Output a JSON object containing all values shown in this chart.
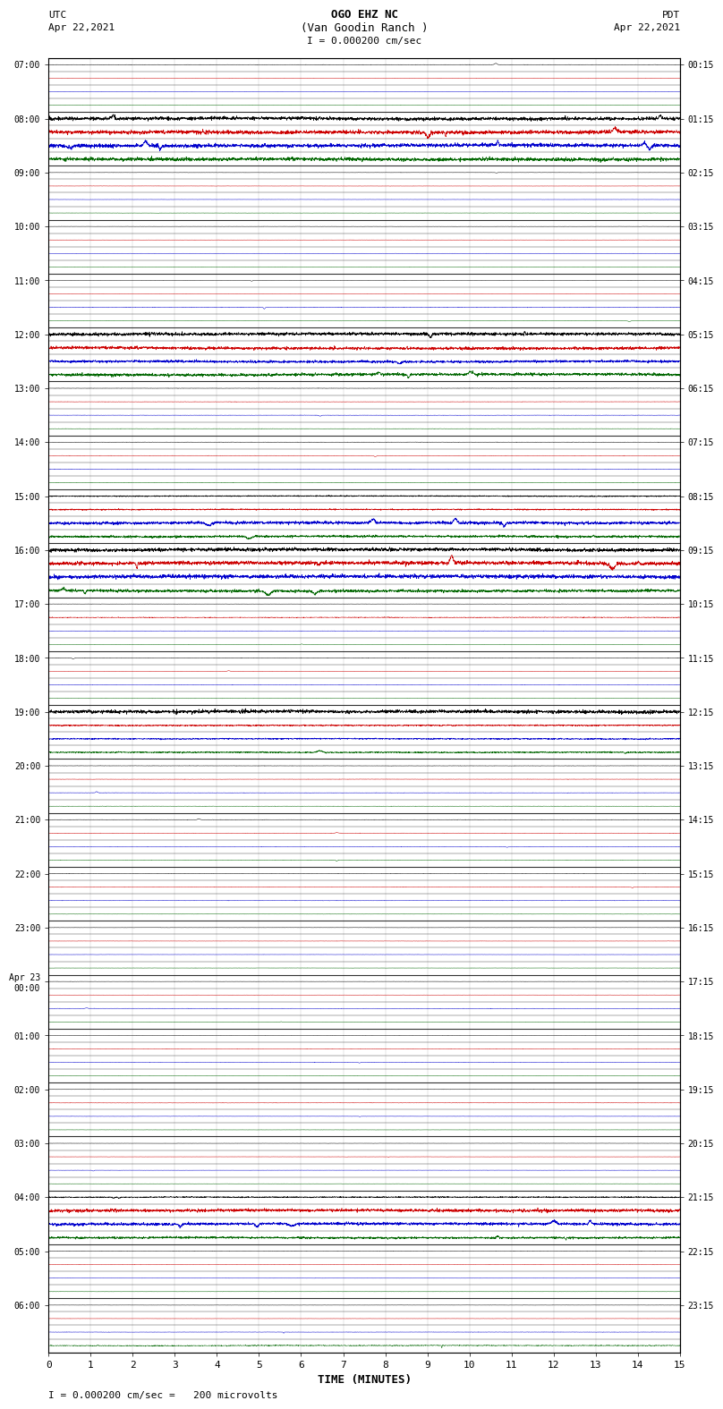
{
  "title_line1": "OGO EHZ NC",
  "title_line2": "(Van Goodin Ranch )",
  "scale_text": "I = 0.000200 cm/sec",
  "footer_text": "I = 0.000200 cm/sec =   200 microvolts",
  "xlabel": "TIME (MINUTES)",
  "xlim": [
    0,
    15
  ],
  "xticks": [
    0,
    1,
    2,
    3,
    4,
    5,
    6,
    7,
    8,
    9,
    10,
    11,
    12,
    13,
    14,
    15
  ],
  "background_color": "#ffffff",
  "figure_width": 8.5,
  "figure_height": 16.13,
  "colors": [
    "#000000",
    "#cc0000",
    "#0000cc",
    "#006600"
  ],
  "utc_labels": [
    "07:00",
    "",
    "",
    "",
    "08:00",
    "",
    "",
    "",
    "09:00",
    "",
    "",
    "",
    "10:00",
    "",
    "",
    "",
    "11:00",
    "",
    "",
    "",
    "12:00",
    "",
    "",
    "",
    "13:00",
    "",
    "",
    "",
    "14:00",
    "",
    "",
    "",
    "15:00",
    "",
    "",
    "",
    "16:00",
    "",
    "",
    "",
    "17:00",
    "",
    "",
    "",
    "18:00",
    "",
    "",
    "",
    "19:00",
    "",
    "",
    "",
    "20:00",
    "",
    "",
    "",
    "21:00",
    "",
    "",
    "",
    "22:00",
    "",
    "",
    "",
    "23:00",
    "",
    "",
    "",
    "Apr 23\n00:00",
    "",
    "",
    "",
    "01:00",
    "",
    "",
    "",
    "02:00",
    "",
    "",
    "",
    "03:00",
    "",
    "",
    "",
    "04:00",
    "",
    "",
    "",
    "05:00",
    "",
    "",
    "",
    "06:00",
    "",
    "",
    ""
  ],
  "pdt_labels": [
    "00:15",
    "",
    "",
    "",
    "01:15",
    "",
    "",
    "",
    "02:15",
    "",
    "",
    "",
    "03:15",
    "",
    "",
    "",
    "04:15",
    "",
    "",
    "",
    "05:15",
    "",
    "",
    "",
    "06:15",
    "",
    "",
    "",
    "07:15",
    "",
    "",
    "",
    "08:15",
    "",
    "",
    "",
    "09:15",
    "",
    "",
    "",
    "10:15",
    "",
    "",
    "",
    "11:15",
    "",
    "",
    "",
    "12:15",
    "",
    "",
    "",
    "13:15",
    "",
    "",
    "",
    "14:15",
    "",
    "",
    "",
    "15:15",
    "",
    "",
    "",
    "16:15",
    "",
    "",
    "",
    "17:15",
    "",
    "",
    "",
    "18:15",
    "",
    "",
    "",
    "19:15",
    "",
    "",
    "",
    "20:15",
    "",
    "",
    "",
    "21:15",
    "",
    "",
    "",
    "22:15",
    "",
    "",
    "",
    "23:15",
    "",
    "",
    ""
  ],
  "row_groups": [
    {
      "hour": "07",
      "active": false,
      "amplitudes": [
        0.06,
        0.04,
        0.04,
        0.04
      ]
    },
    {
      "hour": "08",
      "active": true,
      "amplitudes": [
        0.35,
        0.38,
        0.38,
        0.35
      ]
    },
    {
      "hour": "09",
      "active": false,
      "amplitudes": [
        0.04,
        0.04,
        0.04,
        0.04
      ]
    },
    {
      "hour": "10",
      "active": false,
      "amplitudes": [
        0.04,
        0.04,
        0.04,
        0.04
      ]
    },
    {
      "hour": "11",
      "active": false,
      "amplitudes": [
        0.04,
        0.04,
        0.08,
        0.04
      ]
    },
    {
      "hour": "12",
      "active": true,
      "amplitudes": [
        0.3,
        0.3,
        0.25,
        0.28
      ]
    },
    {
      "hour": "13",
      "active": false,
      "amplitudes": [
        0.06,
        0.06,
        0.06,
        0.06
      ]
    },
    {
      "hour": "14",
      "active": false,
      "amplitudes": [
        0.06,
        0.06,
        0.06,
        0.06
      ]
    },
    {
      "hour": "15",
      "active": true,
      "amplitudes": [
        0.1,
        0.12,
        0.3,
        0.22
      ]
    },
    {
      "hour": "16",
      "active": true,
      "amplitudes": [
        0.35,
        0.38,
        0.38,
        0.28
      ]
    },
    {
      "hour": "17",
      "active": false,
      "amplitudes": [
        0.04,
        0.15,
        0.06,
        0.04
      ]
    },
    {
      "hour": "18",
      "active": false,
      "amplitudes": [
        0.06,
        0.04,
        0.06,
        0.04
      ]
    },
    {
      "hour": "19",
      "active": true,
      "amplitudes": [
        0.35,
        0.12,
        0.12,
        0.12
      ]
    },
    {
      "hour": "20",
      "active": false,
      "amplitudes": [
        0.06,
        0.06,
        0.06,
        0.06
      ]
    },
    {
      "hour": "21",
      "active": false,
      "amplitudes": [
        0.06,
        0.06,
        0.06,
        0.06
      ]
    },
    {
      "hour": "22",
      "active": false,
      "amplitudes": [
        0.06,
        0.06,
        0.06,
        0.04
      ]
    },
    {
      "hour": "23",
      "active": false,
      "amplitudes": [
        0.04,
        0.04,
        0.04,
        0.04
      ]
    },
    {
      "hour": "00",
      "active": false,
      "amplitudes": [
        0.04,
        0.04,
        0.06,
        0.04
      ]
    },
    {
      "hour": "01",
      "active": false,
      "amplitudes": [
        0.04,
        0.06,
        0.06,
        0.04
      ]
    },
    {
      "hour": "02",
      "active": false,
      "amplitudes": [
        0.04,
        0.06,
        0.04,
        0.04
      ]
    },
    {
      "hour": "03",
      "active": false,
      "amplitudes": [
        0.04,
        0.04,
        0.04,
        0.04
      ]
    },
    {
      "hour": "04",
      "active": true,
      "amplitudes": [
        0.1,
        0.3,
        0.28,
        0.2
      ]
    },
    {
      "hour": "05",
      "active": false,
      "amplitudes": [
        0.06,
        0.06,
        0.04,
        0.04
      ]
    },
    {
      "hour": "06",
      "active": false,
      "amplitudes": [
        0.04,
        0.04,
        0.06,
        0.2
      ]
    }
  ]
}
